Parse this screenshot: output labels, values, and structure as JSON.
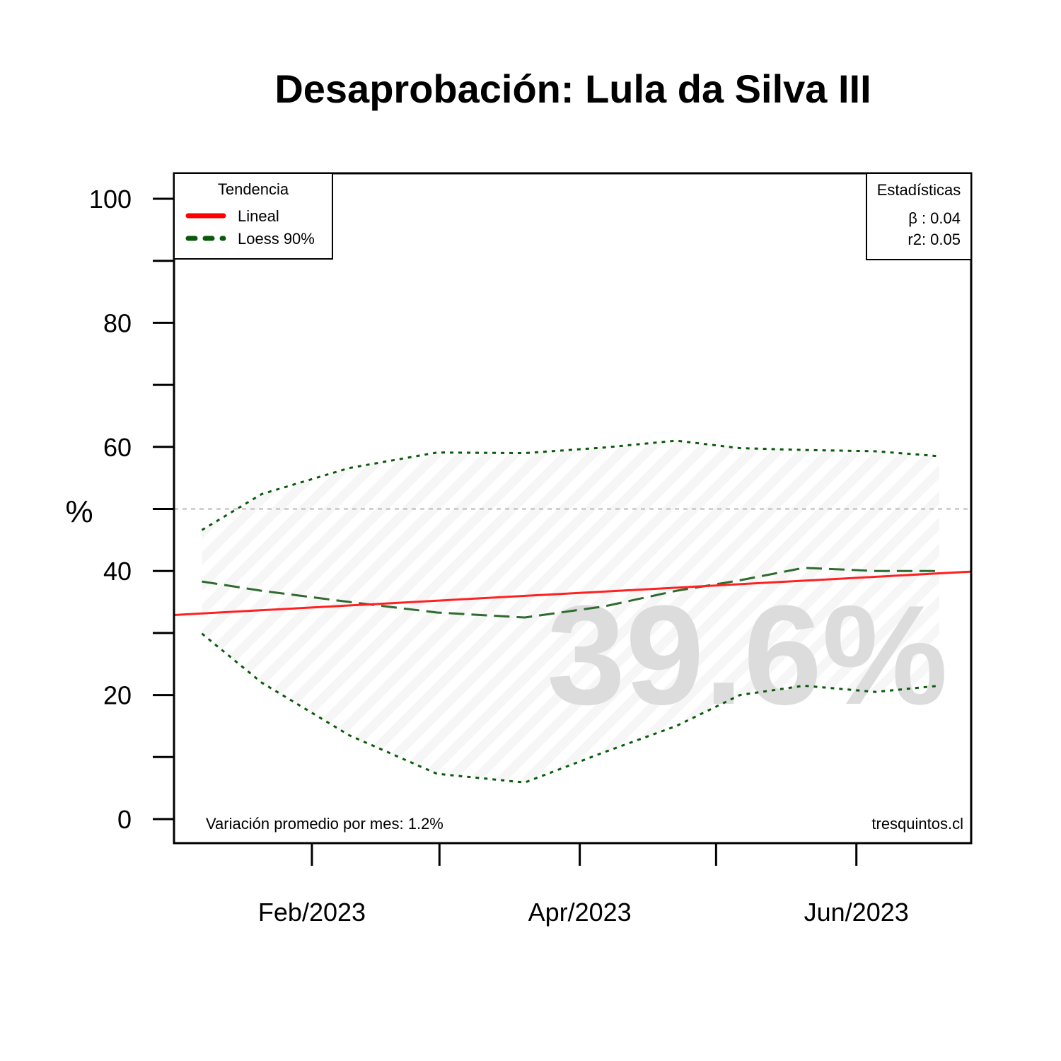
{
  "chart_data": {
    "type": "line",
    "title": "Desaprobación: Lula da Silva III",
    "ylabel": "%",
    "xlabel": "",
    "ylim": [
      0,
      100
    ],
    "y_ticks": [
      0,
      20,
      40,
      60,
      80,
      100
    ],
    "x_tick_labels": [
      "Feb/2023",
      "Apr/2023",
      "Jun/2023"
    ],
    "reference_line": 50,
    "watermark_value": "39.6%",
    "legend": {
      "title": "Tendencia",
      "position": "top-left",
      "items": [
        {
          "label": "Lineal",
          "color": "#ff0000",
          "style": "solid"
        },
        {
          "label": "Loess 90%",
          "color": "#0b5a0b",
          "style": "dashed"
        }
      ]
    },
    "stats": {
      "title": "Estadísticas",
      "beta": "β : 0.04",
      "r2": "r2: 0.05"
    },
    "footer_left": "Variación promedio por mes: 1.2%",
    "footer_right": "tresquintos.cl",
    "series": [
      {
        "name": "Lineal",
        "color": "#ff0000",
        "x": [
          0.0,
          1.0
        ],
        "values": [
          32.9,
          39.9
        ]
      },
      {
        "name": "Loess 90%",
        "color": "#2e6b2e",
        "x": [
          0.035,
          0.11,
          0.22,
          0.33,
          0.44,
          0.54,
          0.63,
          0.71,
          0.79,
          0.88,
          0.96
        ],
        "values": [
          38.3,
          36.8,
          35.0,
          33.3,
          32.5,
          34.3,
          36.8,
          38.5,
          40.5,
          40.0,
          40.0
        ]
      },
      {
        "name": "upper",
        "color": "#0b5a0b",
        "x": [
          0.035,
          0.11,
          0.22,
          0.33,
          0.44,
          0.54,
          0.63,
          0.71,
          0.79,
          0.88,
          0.96
        ],
        "values": [
          46.6,
          52.4,
          56.6,
          59.1,
          59.0,
          59.9,
          61.0,
          59.8,
          59.5,
          59.3,
          58.5
        ]
      },
      {
        "name": "lower",
        "color": "#0b5a0b",
        "x": [
          0.035,
          0.11,
          0.22,
          0.33,
          0.44,
          0.54,
          0.63,
          0.71,
          0.79,
          0.88,
          0.96
        ],
        "values": [
          29.9,
          22.0,
          13.5,
          7.3,
          5.9,
          10.8,
          15.0,
          20.0,
          21.5,
          20.5,
          21.5
        ]
      }
    ]
  }
}
